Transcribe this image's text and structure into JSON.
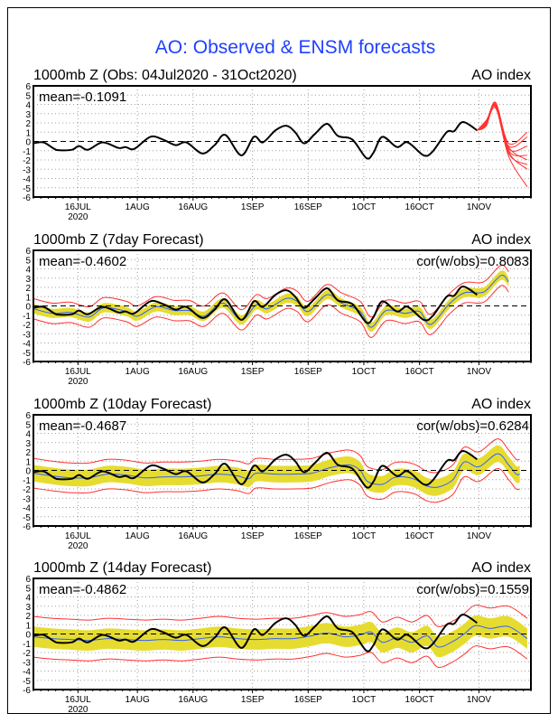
{
  "title": "AO: Observed & ENSM forecasts",
  "colors": {
    "title": "#2040ff",
    "observed": "#000000",
    "ensemble": "#ff3030",
    "mean": "#3060ff",
    "band": "#e6dc30",
    "grid": "#a0a0a0"
  },
  "chart_data": {
    "type": "line",
    "x_unit": "days since 04Jul2020",
    "xlim": [
      0,
      134
    ],
    "ylim": [
      -6,
      6
    ],
    "yticks": [
      -6,
      -5,
      -4,
      -3,
      -2,
      -1,
      0,
      1,
      2,
      3,
      4,
      5,
      6
    ],
    "ytick_labels": [
      "-6",
      "-5",
      "-4",
      "-3",
      "-2",
      "-1",
      "0",
      "1",
      "2",
      "3",
      "4",
      "5",
      "6"
    ],
    "xticks": [
      {
        "day": 12,
        "label": "16JUL",
        "sublabel": "2020"
      },
      {
        "day": 28,
        "label": "1AUG"
      },
      {
        "day": 43,
        "label": "16AUG"
      },
      {
        "day": 59,
        "label": "1SEP"
      },
      {
        "day": 74,
        "label": "16SEP"
      },
      {
        "day": 89,
        "label": "1OCT"
      },
      {
        "day": 104,
        "label": "16OCT"
      },
      {
        "day": 120,
        "label": "1NOV"
      }
    ],
    "observed": [
      [
        0,
        -0.2
      ],
      [
        2.7,
        -0.1
      ],
      [
        5.6,
        -0.8
      ],
      [
        7,
        -0.95
      ],
      [
        10.4,
        -0.9
      ],
      [
        12.3,
        -0.5
      ],
      [
        14.7,
        -0.9
      ],
      [
        18.6,
        -0.1
      ],
      [
        22.9,
        -0.7
      ],
      [
        24.8,
        -0.6
      ],
      [
        27.2,
        -0.8
      ],
      [
        31.5,
        0.5
      ],
      [
        34.9,
        0.2
      ],
      [
        38.3,
        -0.4
      ],
      [
        41.2,
        -0.1
      ],
      [
        45.5,
        -1.3
      ],
      [
        48.8,
        -0.4
      ],
      [
        51.7,
        0.7
      ],
      [
        56,
        -1.5
      ],
      [
        59.4,
        0.5
      ],
      [
        61.8,
        -0.1
      ],
      [
        65.2,
        1.2
      ],
      [
        68.1,
        1.7
      ],
      [
        70.5,
        1.0
      ],
      [
        72.9,
        -0.2
      ],
      [
        75.8,
        0.8
      ],
      [
        79.1,
        1.9
      ],
      [
        82,
        0.6
      ],
      [
        85.9,
        0.2
      ],
      [
        89.7,
        -1.8
      ],
      [
        91.6,
        -1.2
      ],
      [
        94,
        0.5
      ],
      [
        97.9,
        -0.6
      ],
      [
        100.8,
        -0.1
      ],
      [
        105.1,
        -1.5
      ],
      [
        107.5,
        -1.1
      ],
      [
        111.3,
        1.0
      ],
      [
        113.3,
        1.1
      ],
      [
        115.7,
        2.1
      ],
      [
        119.5,
        1.2
      ]
    ],
    "panels": [
      {
        "title": "1000mb Z (Obs: 04Jul2020 - 31Oct2020)",
        "right_title": "AO index",
        "mean_label": "mean=-0.1091",
        "ensemble_members": [
          [
            [
              119.5,
              1.2
            ],
            [
              122,
              2.1
            ],
            [
              124.5,
              4.2
            ],
            [
              128,
              -0.2
            ],
            [
              133,
              1.0
            ]
          ],
          [
            [
              119.5,
              1.2
            ],
            [
              122,
              1.8
            ],
            [
              124.5,
              4.0
            ],
            [
              128,
              -0.5
            ],
            [
              133,
              0.5
            ]
          ],
          [
            [
              119.5,
              1.2
            ],
            [
              122,
              2.3
            ],
            [
              124.5,
              3.8
            ],
            [
              128,
              -0.8
            ],
            [
              133,
              -0.5
            ]
          ],
          [
            [
              119.5,
              1.2
            ],
            [
              122,
              1.9
            ],
            [
              124.5,
              4.1
            ],
            [
              128,
              -1.0
            ],
            [
              133,
              -1.5
            ]
          ],
          [
            [
              119.5,
              1.2
            ],
            [
              122,
              2.0
            ],
            [
              124.5,
              3.6
            ],
            [
              128,
              -0.6
            ],
            [
              133,
              -2.0
            ]
          ],
          [
            [
              119.5,
              1.2
            ],
            [
              122,
              2.2
            ],
            [
              124.5,
              3.9
            ],
            [
              128,
              -1.3
            ],
            [
              133,
              -2.5
            ]
          ],
          [
            [
              119.5,
              1.2
            ],
            [
              122,
              1.7
            ],
            [
              124.5,
              4.2
            ],
            [
              128,
              -1.1
            ],
            [
              133,
              -3.0
            ]
          ],
          [
            [
              119.5,
              1.2
            ],
            [
              122,
              2.1
            ],
            [
              124.5,
              3.7
            ],
            [
              128,
              -1.6
            ],
            [
              133,
              -4.9
            ]
          ]
        ]
      },
      {
        "title": "1000mb Z (7day Forecast)",
        "right_title": "AO index",
        "mean_label": "mean=-0.4602",
        "cor_label": "cor(w/obs)=0.8083",
        "ens_mean": [
          [
            0,
            -0.3
          ],
          [
            5,
            -0.8
          ],
          [
            10,
            -0.7
          ],
          [
            15,
            -1.2
          ],
          [
            19,
            -0.2
          ],
          [
            25,
            -0.6
          ],
          [
            28,
            -1.1
          ],
          [
            33,
            -0.1
          ],
          [
            38,
            -0.5
          ],
          [
            42,
            -0.5
          ],
          [
            46,
            -1.1
          ],
          [
            51,
            0.3
          ],
          [
            56,
            -1.5
          ],
          [
            60,
            0.1
          ],
          [
            63,
            -0.3
          ],
          [
            68,
            0.8
          ],
          [
            71,
            0.5
          ],
          [
            74,
            -0.6
          ],
          [
            79,
            1.2
          ],
          [
            83,
            0.3
          ],
          [
            88,
            -0.6
          ],
          [
            91,
            -2.3
          ],
          [
            95,
            -0.5
          ],
          [
            100,
            -0.8
          ],
          [
            104,
            -0.6
          ],
          [
            107,
            -2.0
          ],
          [
            112,
            0.2
          ],
          [
            116,
            1.4
          ],
          [
            120,
            1.4
          ],
          [
            122,
            1.7
          ],
          [
            126,
            3.3
          ],
          [
            128,
            2.6
          ]
        ],
        "band_halfwidth": 0.5,
        "envelope_halfwidth": 1.1
      },
      {
        "title": "1000mb Z (10day Forecast)",
        "right_title": "AO index",
        "mean_label": "mean=-0.4687",
        "cor_label": "cor(w/obs)=0.6284",
        "ens_mean": [
          [
            0,
            -0.3
          ],
          [
            5,
            -0.6
          ],
          [
            10,
            -0.8
          ],
          [
            15,
            -0.8
          ],
          [
            20,
            -0.4
          ],
          [
            25,
            -0.5
          ],
          [
            30,
            -0.8
          ],
          [
            35,
            -0.7
          ],
          [
            40,
            -0.7
          ],
          [
            45,
            -0.6
          ],
          [
            50,
            -0.4
          ],
          [
            55,
            -0.6
          ],
          [
            58,
            -0.9
          ],
          [
            60,
            -0.3
          ],
          [
            65,
            -0.4
          ],
          [
            70,
            -0.4
          ],
          [
            75,
            -0.3
          ],
          [
            80,
            0.3
          ],
          [
            85,
            0.6
          ],
          [
            88,
            0.0
          ],
          [
            90,
            -1.2
          ],
          [
            94,
            -1.5
          ],
          [
            97,
            -0.8
          ],
          [
            100,
            -0.7
          ],
          [
            103,
            -1.0
          ],
          [
            106,
            -1.7
          ],
          [
            109,
            -1.8
          ],
          [
            113,
            -1.0
          ],
          [
            116,
            0.9
          ],
          [
            120,
            0.4
          ],
          [
            125,
            1.8
          ],
          [
            128,
            0.6
          ],
          [
            130,
            -0.4
          ],
          [
            131,
            -0.4
          ]
        ],
        "band_halfwidth": 0.9,
        "envelope_halfwidth": 1.6
      },
      {
        "title": "1000mb Z (14day Forecast)",
        "right_title": "AO index",
        "mean_label": "mean=-0.4862",
        "cor_label": "cor(w/obs)=0.1559",
        "ens_mean": [
          [
            0,
            -0.3
          ],
          [
            5,
            -0.5
          ],
          [
            10,
            -0.6
          ],
          [
            15,
            -0.7
          ],
          [
            20,
            -0.5
          ],
          [
            25,
            -0.6
          ],
          [
            30,
            -0.7
          ],
          [
            35,
            -0.6
          ],
          [
            40,
            -0.7
          ],
          [
            45,
            -0.5
          ],
          [
            50,
            -0.3
          ],
          [
            55,
            -0.5
          ],
          [
            60,
            -0.6
          ],
          [
            65,
            -0.5
          ],
          [
            70,
            -0.5
          ],
          [
            75,
            -0.2
          ],
          [
            79,
            0.1
          ],
          [
            84,
            -0.3
          ],
          [
            88,
            -0.1
          ],
          [
            91,
            0.2
          ],
          [
            94,
            -0.9
          ],
          [
            98,
            -0.4
          ],
          [
            102,
            -0.9
          ],
          [
            106,
            -0.2
          ],
          [
            109,
            -1.4
          ],
          [
            113,
            -0.8
          ],
          [
            116,
            0.0
          ],
          [
            119,
            0.9
          ],
          [
            123,
            0.6
          ],
          [
            128,
            0.8
          ],
          [
            133,
            -0.5
          ]
        ],
        "band_halfwidth": 1.1,
        "envelope_halfwidth": 2.2
      }
    ]
  }
}
